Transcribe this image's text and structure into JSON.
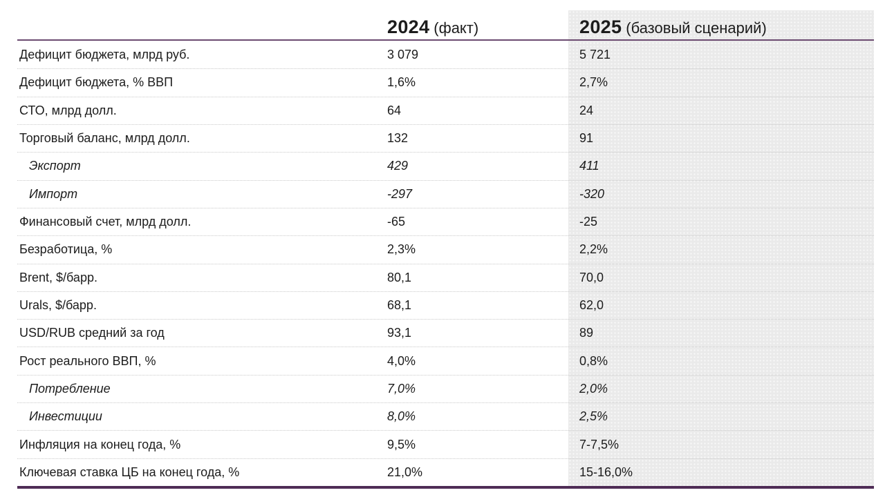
{
  "chart_data": {
    "type": "table",
    "title": "",
    "header": [
      {
        "year": "2024",
        "note": "(факт)"
      },
      {
        "year": "2025",
        "note": "(базовый сценарий)"
      }
    ],
    "rows": [
      {
        "label": "Дефицит бюджета, млрд руб.",
        "v2024": "3 079",
        "v2025": "5 721",
        "italic": false
      },
      {
        "label": "Дефицит бюджета, % ВВП",
        "v2024": "1,6%",
        "v2025": "2,7%",
        "italic": false
      },
      {
        "label": "СТО, млрд долл.",
        "v2024": "64",
        "v2025": "24",
        "italic": false
      },
      {
        "label": "Торговый баланс, млрд долл.",
        "v2024": "132",
        "v2025": "91",
        "italic": false
      },
      {
        "label": "Экспорт",
        "v2024": "429",
        "v2025": "411",
        "italic": true
      },
      {
        "label": "Импорт",
        "v2024": "-297",
        "v2025": "-320",
        "italic": true
      },
      {
        "label": "Финансовый счет, млрд долл.",
        "v2024": "-65",
        "v2025": "-25",
        "italic": false
      },
      {
        "label": "Безработица, %",
        "v2024": "2,3%",
        "v2025": "2,2%",
        "italic": false
      },
      {
        "label": "Brent, $/барр.",
        "v2024": "80,1",
        "v2025": "70,0",
        "italic": false
      },
      {
        "label": "Urals, $/барр.",
        "v2024": "68,1",
        "v2025": "62,0",
        "italic": false
      },
      {
        "label": "USD/RUB средний за год",
        "v2024": "93,1",
        "v2025": "89",
        "italic": false
      },
      {
        "label": "Рост реального ВВП, %",
        "v2024": "4,0%",
        "v2025": "0,8%",
        "italic": false
      },
      {
        "label": "Потребление",
        "v2024": "7,0%",
        "v2025": "2,0%",
        "italic": true
      },
      {
        "label": "Инвестиции",
        "v2024": "8,0%",
        "v2025": "2,5%",
        "italic": true
      },
      {
        "label": "Инфляция на конец года, %",
        "v2024": "9,5%",
        "v2025": "7-7,5%",
        "italic": false
      },
      {
        "label": "Ключевая ставка ЦБ на конец года, %",
        "v2024": "21,0%",
        "v2025": "15-16,0%",
        "italic": false
      }
    ],
    "layout": {
      "scenario_column_highlighted": true,
      "grid": "horizontal dotted separators",
      "legend_position": "none"
    }
  },
  "colors": {
    "header_rule": "#6b4a70",
    "bottom_bar": "#4f2d56",
    "scenario_bg": "#eaeaea",
    "text": "#1c1c1c",
    "separator": "#c9c9c9"
  }
}
